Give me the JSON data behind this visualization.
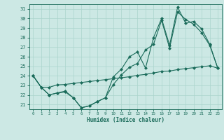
{
  "xlabel": "Humidex (Indice chaleur)",
  "bg_color": "#cce8e4",
  "grid_color": "#aad4cc",
  "line_color": "#1a6b5a",
  "xlim": [
    -0.5,
    23.5
  ],
  "ylim": [
    20.5,
    31.5
  ],
  "xticks": [
    0,
    1,
    2,
    3,
    4,
    5,
    6,
    7,
    8,
    9,
    10,
    11,
    12,
    13,
    14,
    15,
    16,
    17,
    18,
    19,
    20,
    21,
    22,
    23
  ],
  "yticks": [
    21,
    22,
    23,
    24,
    25,
    26,
    27,
    28,
    29,
    30,
    31
  ],
  "line1_x": [
    0,
    1,
    2,
    3,
    4,
    5,
    6,
    7,
    8,
    9,
    10,
    11,
    12,
    13,
    14,
    15,
    16,
    17,
    18,
    19,
    20,
    21,
    22,
    23
  ],
  "line1_y": [
    24.0,
    22.8,
    22.0,
    22.2,
    22.4,
    21.7,
    20.65,
    20.85,
    21.3,
    21.7,
    23.9,
    24.7,
    26.0,
    26.5,
    24.8,
    28.0,
    30.0,
    27.2,
    31.2,
    29.5,
    29.7,
    28.9,
    27.3,
    24.8
  ],
  "line2_x": [
    0,
    1,
    2,
    3,
    4,
    5,
    6,
    7,
    8,
    9,
    10,
    11,
    12,
    13,
    14,
    15,
    16,
    17,
    18,
    19,
    20,
    21,
    22,
    23
  ],
  "line2_y": [
    24.0,
    22.8,
    22.0,
    22.2,
    22.3,
    21.7,
    20.65,
    20.85,
    21.3,
    21.7,
    23.1,
    24.1,
    24.9,
    25.3,
    26.7,
    27.3,
    29.8,
    26.9,
    30.7,
    29.9,
    29.4,
    28.5,
    27.2,
    24.8
  ],
  "line3_x": [
    0,
    1,
    2,
    3,
    4,
    5,
    6,
    7,
    8,
    9,
    10,
    11,
    12,
    13,
    14,
    15,
    16,
    17,
    18,
    19,
    20,
    21,
    22,
    23
  ],
  "line3_y": [
    24.0,
    22.8,
    22.8,
    23.05,
    23.1,
    23.2,
    23.3,
    23.4,
    23.5,
    23.6,
    23.7,
    23.8,
    23.9,
    24.05,
    24.15,
    24.3,
    24.45,
    24.5,
    24.65,
    24.75,
    24.85,
    24.95,
    25.05,
    24.8
  ]
}
